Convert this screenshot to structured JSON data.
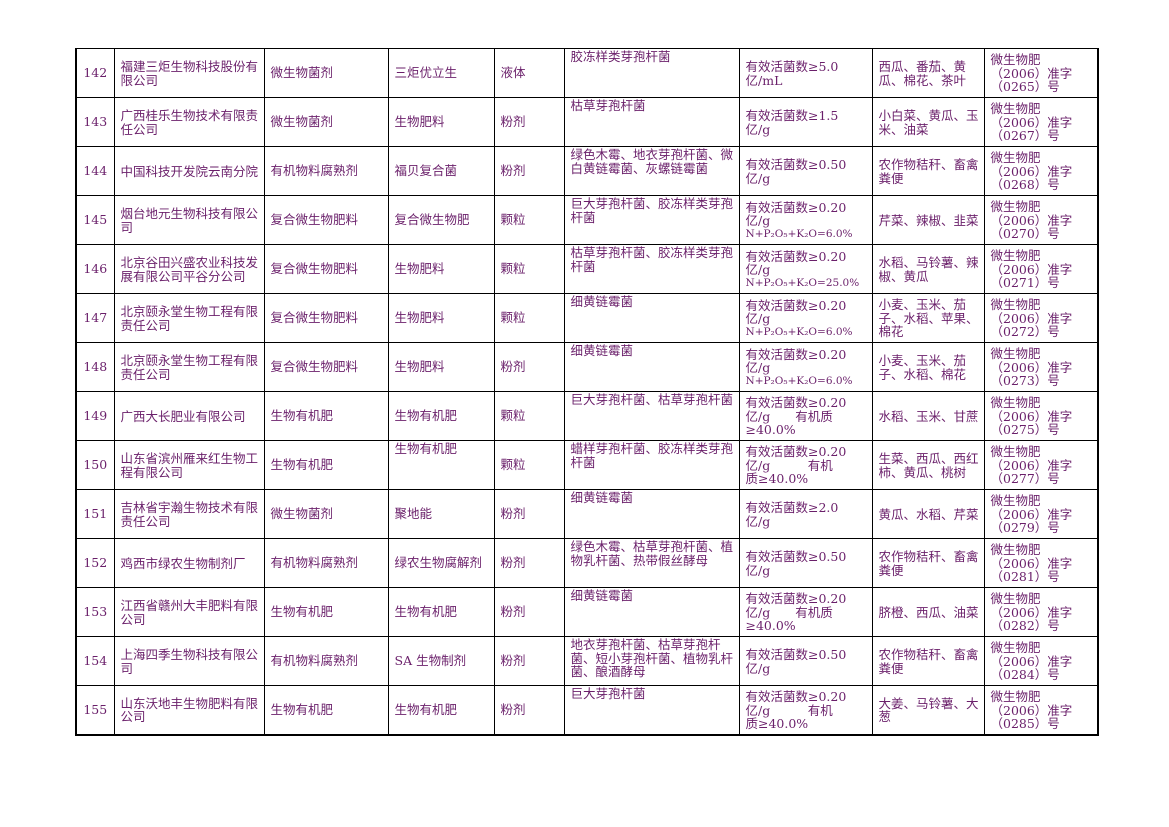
{
  "table": {
    "rows": [
      {
        "no": "142",
        "company": "福建三炬生物科技股份有限公司",
        "category": "微生物菌剂",
        "product": "三炬优立生",
        "form": "液体",
        "strains": "胶冻样类芽孢杆菌",
        "content": [
          "有效活菌数≥5.0",
          "亿/mL"
        ],
        "crops": "西瓜、番茄、黄瓜、棉花、茶叶",
        "license": [
          "微生物肥",
          "（2006）准字",
          "（0265）号"
        ]
      },
      {
        "no": "143",
        "company": "广西桂乐生物技术有限责任公司",
        "category": "微生物菌剂",
        "product": "生物肥料",
        "form": "粉剂",
        "strains": "枯草芽孢杆菌",
        "content": [
          "有效活菌数≥1.5",
          "亿/g"
        ],
        "crops": "小白菜、黄瓜、玉米、油菜",
        "license": [
          "微生物肥",
          "（2006）准字",
          "（0267）号"
        ]
      },
      {
        "no": "144",
        "company": "中国科技开发院云南分院",
        "category": "有机物料腐熟剂",
        "product": "福贝复合菌",
        "form": "粉剂",
        "strains": "绿色木霉、地衣芽孢杆菌、微白黄链霉菌、灰螺链霉菌",
        "content": [
          "有效活菌数≥0.50",
          "亿/g"
        ],
        "crops": "农作物秸秆、畜禽粪便",
        "license": [
          "微生物肥",
          "（2006）准字",
          "（0268）号"
        ]
      },
      {
        "no": "145",
        "company": "烟台地元生物科技有限公司",
        "category": "复合微生物肥料",
        "product": "复合微生物肥",
        "form": "颗粒",
        "strains": "巨大芽孢杆菌、胶冻样类芽孢杆菌",
        "content": [
          "有效活菌数≥0.20",
          "亿/g"
        ],
        "nutrient": "N+P₂O₅+K₂O=6.0%",
        "crops": "芹菜、辣椒、韭菜",
        "license": [
          "微生物肥",
          "（2006）准字",
          "（0270）号"
        ]
      },
      {
        "no": "146",
        "company": "北京谷田兴盛农业科技发展有限公司平谷分公司",
        "category": "复合微生物肥料",
        "product": "生物肥料",
        "form": "颗粒",
        "strains": "枯草芽孢杆菌、胶冻样类芽孢杆菌",
        "content": [
          "有效活菌数≥0.20",
          "亿/g"
        ],
        "nutrient": "N+P₂O₅+K₂O=25.0%",
        "crops": "水稻、马铃薯、辣椒、黄瓜",
        "license": [
          "微生物肥",
          "（2006）准字",
          "（0271）号"
        ]
      },
      {
        "no": "147",
        "company": "北京颐永堂生物工程有限责任公司",
        "category": "复合微生物肥料",
        "product": "生物肥料",
        "form": "颗粒",
        "strains": "细黄链霉菌",
        "content": [
          "有效活菌数≥0.20",
          "亿/g"
        ],
        "nutrient": "N+P₂O₅+K₂O=6.0%",
        "crops": "小麦、玉米、茄子、水稻、苹果、棉花",
        "license": [
          "微生物肥",
          "（2006）准字",
          "（0272）号"
        ]
      },
      {
        "no": "148",
        "company": "北京颐永堂生物工程有限责任公司",
        "category": "复合微生物肥料",
        "product": "生物肥料",
        "form": "粉剂",
        "strains": "细黄链霉菌",
        "content": [
          "有效活菌数≥0.20",
          "亿/g"
        ],
        "nutrient": "N+P₂O₅+K₂O=6.0%",
        "crops": "小麦、玉米、茄子、水稻、棉花",
        "license": [
          "微生物肥",
          "（2006）准字",
          "（0273）号"
        ]
      },
      {
        "no": "149",
        "company": "广西大长肥业有限公司",
        "category": "生物有机肥",
        "product": "生物有机肥",
        "form": "颗粒",
        "strains": "巨大芽孢杆菌、枯草芽孢杆菌",
        "content": [
          "有效活菌数≥0.20",
          "亿/g　　有机质",
          "≥40.0%"
        ],
        "crops": "水稻、玉米、甘蔗",
        "license": [
          "微生物肥",
          "（2006）准字",
          "（0275）号"
        ]
      },
      {
        "no": "150",
        "company": "山东省滨州雁来红生物工程有限公司",
        "category": "生物有机肥",
        "product": "生物有机肥",
        "form": "颗粒",
        "strains": "蜡样芽孢杆菌、胶冻样类芽孢杆菌",
        "content": [
          "有效活菌数≥0.20",
          "亿/g　　　有机",
          "质≥40.0%"
        ],
        "crops": "生菜、西瓜、西红柿、黄瓜、桃树",
        "license": [
          "微生物肥",
          "（2006）准字",
          "（0277）号"
        ]
      },
      {
        "no": "151",
        "company": "吉林省宇瀚生物技术有限责任公司",
        "category": "微生物菌剂",
        "product": "聚地能",
        "form": "粉剂",
        "strains": "细黄链霉菌",
        "content": [
          "有效活菌数≥2.0",
          "亿/g"
        ],
        "crops": "黄瓜、水稻、芹菜",
        "license": [
          "微生物肥",
          "（2006）准字",
          "（0279）号"
        ]
      },
      {
        "no": "152",
        "company": "鸡西市绿农生物制剂厂",
        "category": "有机物料腐熟剂",
        "product": "绿农生物腐解剂",
        "form": "粉剂",
        "strains": "绿色木霉、枯草芽孢杆菌、植物乳杆菌、热带假丝酵母",
        "content": [
          "有效活菌数≥0.50",
          "亿/g"
        ],
        "crops": "农作物秸秆、畜禽粪便",
        "license": [
          "微生物肥",
          "（2006）准字",
          "（0281）号"
        ]
      },
      {
        "no": "153",
        "company": "江西省赣州大丰肥料有限公司",
        "category": "生物有机肥",
        "product": "生物有机肥",
        "form": "粉剂",
        "strains": "细黄链霉菌",
        "content": [
          "有效活菌数≥0.20",
          "亿/g　　有机质",
          "≥40.0%"
        ],
        "crops": "脐橙、西瓜、油菜",
        "license": [
          "微生物肥",
          "（2006）准字",
          "（0282）号"
        ]
      },
      {
        "no": "154",
        "company": "上海四季生物科技有限公司",
        "category": "有机物料腐熟剂",
        "product": "SA 生物制剂",
        "form": "粉剂",
        "strains": "地衣芽孢杆菌、枯草芽孢杆菌、短小芽孢杆菌、植物乳杆菌、酿酒酵母",
        "content": [
          "有效活菌数≥0.50",
          "亿/g"
        ],
        "crops": "农作物秸秆、畜禽粪便",
        "license": [
          "微生物肥",
          "（2006）准字",
          "（0284）号"
        ]
      },
      {
        "no": "155",
        "company": "山东沃地丰生物肥料有限公司",
        "category": "生物有机肥",
        "product": "生物有机肥",
        "form": "粉剂",
        "strains": "巨大芽孢杆菌",
        "content": [
          "有效活菌数≥0.20",
          "亿/g　　　有机",
          "质≥40.0%"
        ],
        "crops": "大姜、马铃薯、大葱",
        "license": [
          "微生物肥",
          "（2006）准字",
          "（0285）号"
        ]
      }
    ]
  },
  "colors": {
    "text": "#6a1f6a",
    "border": "#000000"
  }
}
